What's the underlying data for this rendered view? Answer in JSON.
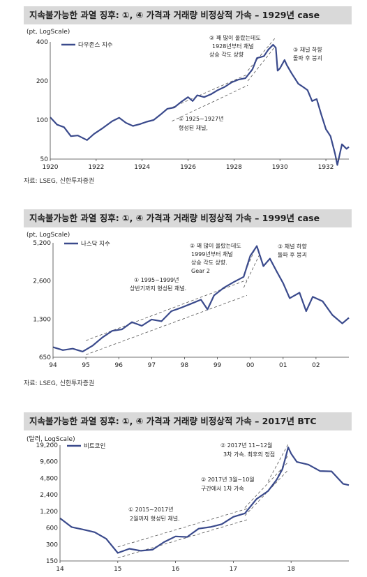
{
  "panels": [
    {
      "title": "지속불가능한 과열 징후: ①, ④ 가격과 거래량 비정상적 가속 – 1929년 case",
      "unit": "(pt, LogScale)",
      "source": "자료: LSEG, 신한투자증권",
      "legend": "다우존스 지수",
      "annotations": [
        {
          "lines": [
            "② 꽤 많이 올랐는데도",
            "1928년부터 채널",
            "상승 각도 상향"
          ]
        },
        {
          "lines": [
            "③ 채널 하향",
            "돌파 후 붕괴"
          ]
        },
        {
          "lines": [
            "① 1925~1927년",
            "형성된 채널,"
          ]
        }
      ]
    },
    {
      "title": "지속불가능한 과열 징후: ①, ④ 가격과 거래량 비정상적 가속 – 1999년 case",
      "unit": "(pt, LogScale)",
      "source": "자료: LSEG, 신한투자증권",
      "legend": "나스닥 지수",
      "annotations": [
        {
          "lines": [
            "② 꽤 많이 올랐는데도",
            "1999년부터 채널",
            "상승 각도 상향.",
            "Gear 2"
          ]
        },
        {
          "lines": [
            "③ 채널 하향",
            "돌파 후 붕괴"
          ]
        },
        {
          "lines": [
            "① 1995~1999년",
            "상반기까지 형성된 채널."
          ]
        }
      ]
    },
    {
      "title": "지속불가능한 과열 징후: ①, ④ 가격과 거래량 비정상적 가속 – 2017년 BTC",
      "unit": "(달러, LogScale)",
      "source": "",
      "legend": "비트코인",
      "annotations": [
        {
          "lines": [
            "② 2017년 11~12월",
            "3차 가속. 최후의 정점"
          ]
        },
        {
          "lines": [
            "② 2017년 3월~10월",
            "구간에서 1차 가속"
          ]
        },
        {
          "lines": [
            "① 2015~2017년",
            "2월까지 형성된 채널."
          ]
        }
      ]
    }
  ],
  "chart_data": [
    {
      "type": "line",
      "title": "지속불가능한 과열 징후: ①, ④ 가격과 거래량 비정상적 가속 – 1929년 case",
      "ylabel": "(pt, LogScale)",
      "yscale": "log",
      "ylim": [
        50,
        400
      ],
      "yticks": [
        50,
        100,
        200,
        400
      ],
      "ytick_labels": [
        "50",
        "100",
        "200",
        "400"
      ],
      "xlim": [
        1920,
        1933
      ],
      "xticks": [
        1920,
        1922,
        1924,
        1926,
        1928,
        1930,
        1932
      ],
      "xtick_labels": [
        "1920",
        "1922",
        "1924",
        "1926",
        "1928",
        "1930",
        "1932"
      ],
      "legend_position": "top-left",
      "series": [
        {
          "name": "다우존스 지수",
          "color": "#3a4a8c",
          "x": [
            1920.0,
            1920.3,
            1920.6,
            1920.9,
            1921.2,
            1921.6,
            1921.9,
            1922.3,
            1922.7,
            1923.0,
            1923.3,
            1923.6,
            1923.9,
            1924.2,
            1924.5,
            1924.8,
            1925.1,
            1925.4,
            1925.7,
            1926.0,
            1926.2,
            1926.4,
            1926.7,
            1927.0,
            1927.3,
            1927.6,
            1927.9,
            1928.2,
            1928.5,
            1928.8,
            1929.0,
            1929.3,
            1929.5,
            1929.7,
            1929.82,
            1929.9,
            1930.0,
            1930.2,
            1930.3,
            1930.5,
            1930.8,
            1931.0,
            1931.2,
            1931.4,
            1931.6,
            1931.8,
            1932.0,
            1932.2,
            1932.4,
            1932.5,
            1932.7,
            1932.9,
            1933.0
          ],
          "y": [
            105,
            92,
            88,
            75,
            76,
            70,
            78,
            87,
            98,
            104,
            95,
            90,
            93,
            97,
            100,
            110,
            122,
            125,
            138,
            150,
            140,
            155,
            150,
            158,
            170,
            180,
            195,
            205,
            210,
            245,
            300,
            310,
            350,
            380,
            360,
            240,
            250,
            290,
            265,
            230,
            190,
            180,
            170,
            140,
            145,
            110,
            85,
            75,
            55,
            45,
            65,
            60,
            62
          ]
        }
      ],
      "channels": [
        {
          "label": "① 1925~1927년 형성된 채널,",
          "upper": [
            [
              1925.3,
              125
            ],
            [
              1928.6,
              225
            ]
          ],
          "lower": [
            [
              1925.3,
              98
            ],
            [
              1928.6,
              185
            ]
          ]
        },
        {
          "label": "② 1928년부터 채널 상승 각도 상향",
          "upper": [
            [
              1928.6,
              240
            ],
            [
              1929.8,
              430
            ]
          ],
          "lower": [
            [
              1928.6,
              200
            ],
            [
              1929.8,
              370
            ]
          ]
        }
      ]
    },
    {
      "type": "line",
      "title": "지속불가능한 과열 징후: ①, ④ 가격과 거래량 비정상적 가속 – 1999년 case",
      "ylabel": "(pt, LogScale)",
      "yscale": "log",
      "ylim": [
        650,
        5200
      ],
      "yticks": [
        650,
        1300,
        2600,
        5200
      ],
      "ytick_labels": [
        "650",
        "1,300",
        "2,600",
        "5,200"
      ],
      "xlim": [
        1994,
        2003
      ],
      "xticks": [
        1994,
        1995,
        1996,
        1997,
        1998,
        1999,
        2000,
        2001,
        2002
      ],
      "xtick_labels": [
        "94",
        "95",
        "96",
        "97",
        "98",
        "99",
        "00",
        "01",
        "02"
      ],
      "legend_position": "top-left",
      "series": [
        {
          "name": "나스닥 지수",
          "color": "#3a4a8c",
          "x": [
            1994.0,
            1994.3,
            1994.6,
            1994.9,
            1995.2,
            1995.5,
            1995.8,
            1996.1,
            1996.4,
            1996.7,
            1997.0,
            1997.3,
            1997.6,
            1997.9,
            1998.2,
            1998.5,
            1998.7,
            1998.9,
            1999.2,
            1999.5,
            1999.8,
            2000.0,
            2000.2,
            2000.4,
            2000.6,
            2000.8,
            2001.0,
            2001.2,
            2001.5,
            2001.7,
            2001.9,
            2002.2,
            2002.5,
            2002.8,
            2003.0
          ],
          "y": [
            780,
            740,
            760,
            720,
            800,
            930,
            1050,
            1080,
            1230,
            1150,
            1290,
            1250,
            1500,
            1600,
            1720,
            1850,
            1550,
            2000,
            2300,
            2550,
            2800,
            4100,
            4900,
            3400,
            3900,
            3100,
            2500,
            1900,
            2100,
            1500,
            1950,
            1800,
            1400,
            1200,
            1330
          ]
        }
      ],
      "channels": [
        {
          "label": "① 1995~1999년 상반기까지 형성된 채널.",
          "upper": [
            [
              1995.0,
              880
            ],
            [
              1999.9,
              2650
            ]
          ],
          "lower": [
            [
              1995.0,
              680
            ],
            [
              1999.9,
              2000
            ]
          ]
        },
        {
          "label": "② 1999년부터 채널 상승 각도 상향. Gear 2",
          "upper": [
            [
              1999.8,
              2900
            ],
            [
              2000.2,
              5000
            ]
          ],
          "lower": [
            [
              1999.8,
              2300
            ],
            [
              2000.3,
              4300
            ]
          ]
        }
      ]
    },
    {
      "type": "line",
      "title": "지속불가능한 과열 징후: ①, ④ 가격과 거래량 비정상적 가속 – 2017년 BTC",
      "ylabel": "(달러, LogScale)",
      "yscale": "log",
      "ylim": [
        150,
        19200
      ],
      "yticks": [
        150,
        300,
        600,
        1200,
        2400,
        4800,
        9600,
        19200
      ],
      "ytick_labels": [
        "150",
        "300",
        "600",
        "1,200",
        "2,400",
        "4,800",
        "9,600",
        "19,200"
      ],
      "xlim": [
        2014,
        2019
      ],
      "xticks": [
        2014,
        2015,
        2016,
        2017,
        2018
      ],
      "xtick_labels": [
        "14",
        "15",
        "16",
        "17",
        "18"
      ],
      "legend_position": "top-left",
      "series": [
        {
          "name": "비트코인",
          "color": "#3a4a8c",
          "x": [
            2014.0,
            2014.2,
            2014.4,
            2014.6,
            2014.8,
            2015.0,
            2015.2,
            2015.4,
            2015.6,
            2015.8,
            2016.0,
            2016.2,
            2016.4,
            2016.6,
            2016.8,
            2017.0,
            2017.2,
            2017.4,
            2017.6,
            2017.75,
            2017.85,
            2017.95,
            2018.0,
            2018.1,
            2018.3,
            2018.5,
            2018.7,
            2018.9,
            2019.0
          ],
          "y": [
            900,
            620,
            560,
            500,
            380,
            210,
            250,
            230,
            240,
            330,
            420,
            410,
            580,
            620,
            700,
            950,
            1100,
            2000,
            2800,
            4500,
            7000,
            17500,
            13500,
            9500,
            8500,
            6500,
            6400,
            3800,
            3600
          ]
        }
      ],
      "channels": [
        {
          "label": "① 2015~2017년 2월까지 형성된 채널.",
          "upper": [
            [
              2015.0,
              270
            ],
            [
              2017.25,
              1350
            ]
          ],
          "lower": [
            [
              2015.0,
              170
            ],
            [
              2017.25,
              850
            ]
          ]
        },
        {
          "label": "② 2017년 3월~10월 구간에서 1차 가속",
          "upper": [
            [
              2017.2,
              1400
            ],
            [
              2017.95,
              9500
            ]
          ],
          "lower": [
            [
              2017.2,
              1000
            ],
            [
              2017.95,
              6800
            ]
          ]
        },
        {
          "label": "② 2017년 11~12월 3차 가속. 최후의 정점",
          "upper": [
            [
              2017.6,
              4200
            ],
            [
              2017.95,
              20000
            ]
          ],
          "lower": [
            [
              2017.7,
              3600
            ],
            [
              2017.95,
              13000
            ]
          ]
        }
      ]
    }
  ]
}
